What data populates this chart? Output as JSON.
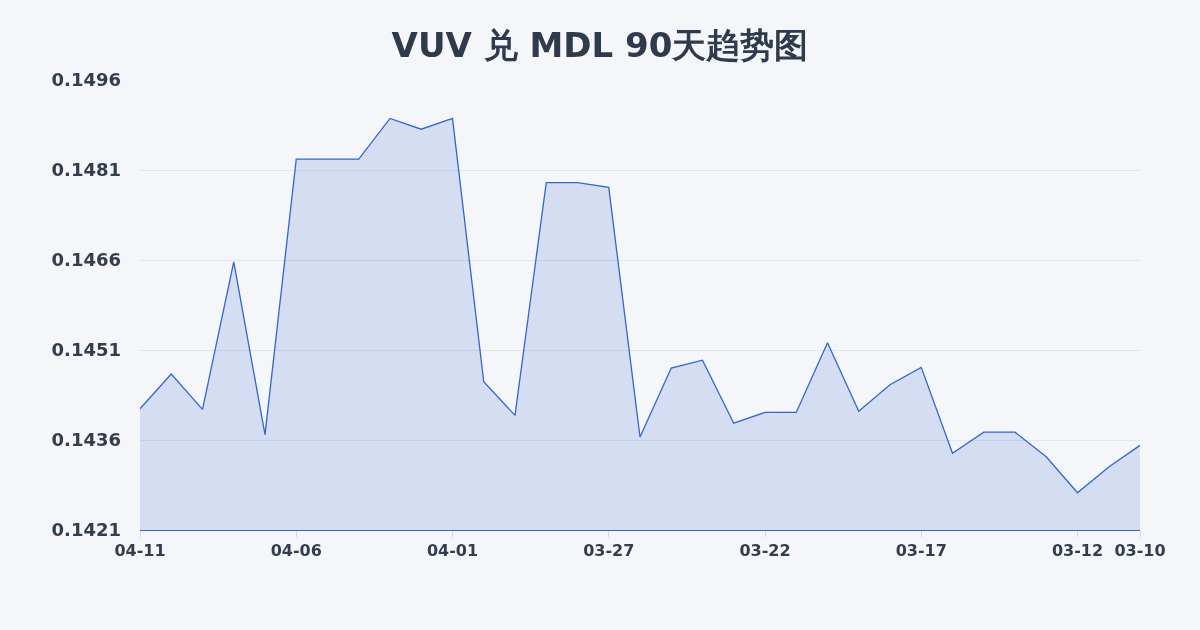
{
  "chart_data": {
    "type": "area",
    "title": "VUV 兑 MDL 90天趋势图",
    "categories": [
      "04-11",
      null,
      null,
      null,
      null,
      "04-06",
      null,
      null,
      null,
      null,
      "04-01",
      null,
      null,
      null,
      null,
      "03-27",
      null,
      null,
      null,
      null,
      "03-22",
      null,
      null,
      null,
      null,
      "03-17",
      null,
      null,
      null,
      null,
      "03-12",
      null,
      "03-10"
    ],
    "values": [
      0.14412,
      0.1447,
      0.14411,
      0.14657,
      0.14369,
      0.14828,
      0.14828,
      0.14828,
      0.14896,
      0.14878,
      0.14896,
      0.14457,
      0.14401,
      0.14789,
      0.14789,
      0.14781,
      0.14365,
      0.1448,
      0.14493,
      0.14388,
      0.14406,
      0.14406,
      0.14522,
      0.14408,
      0.14452,
      0.14481,
      0.14338,
      0.14373,
      0.14373,
      0.14332,
      0.14272,
      0.14315,
      0.14351
    ],
    "color": "#3366cc",
    "ylim": [
      0.1421,
      0.1496
    ],
    "yticks": [
      0.1421,
      0.1436,
      0.1451,
      0.1466,
      0.1481,
      0.1496
    ],
    "grid": "y"
  }
}
